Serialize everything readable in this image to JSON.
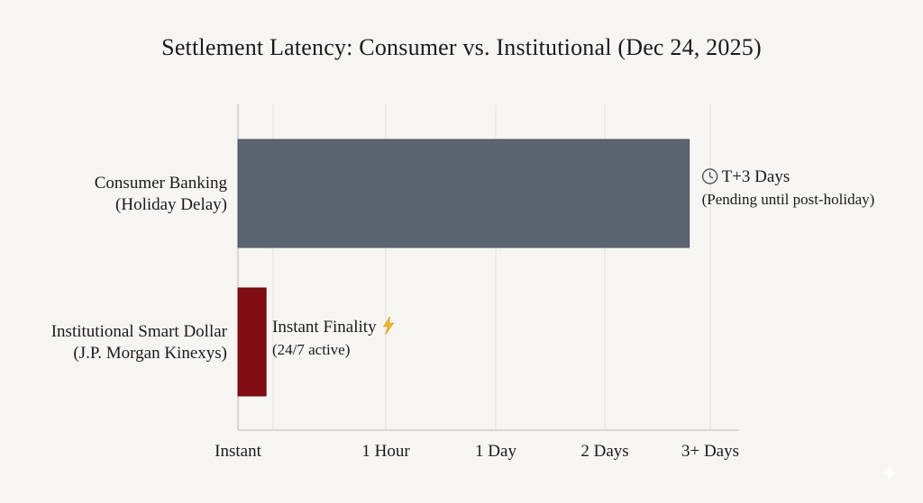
{
  "chart_data": {
    "type": "bar",
    "orientation": "horizontal",
    "title": "Settlement Latency: Consumer vs. Institutional (Dec 24, 2025)",
    "xlabel": "",
    "ylabel": "",
    "grid": true,
    "x_ticks": [
      "Instant",
      "1 Hour",
      "1 Day",
      "2 Days",
      "3+ Days"
    ],
    "x_scale": "ordinal (Instant, 1 Hour, 1 Day, 2 Days, 3+ Days)",
    "xlim": [
      0,
      4.2
    ],
    "categories": [
      {
        "line1": "Consumer Banking",
        "line2": "(Holiday Delay)"
      },
      {
        "line1": "Institutional Smart Dollar",
        "line2": "(J.P. Morgan Kinexys)"
      }
    ],
    "values": [
      3.8,
      0.19
    ],
    "colors": [
      "#5b6470",
      "#800d14"
    ],
    "annotations": [
      {
        "icon": "clock-icon",
        "main": "T+3 Days",
        "sub": "(Pending until post-holiday)"
      },
      {
        "icon": "lightning-icon",
        "main": "Instant Finality",
        "sub": "(24/7 active)"
      }
    ]
  }
}
